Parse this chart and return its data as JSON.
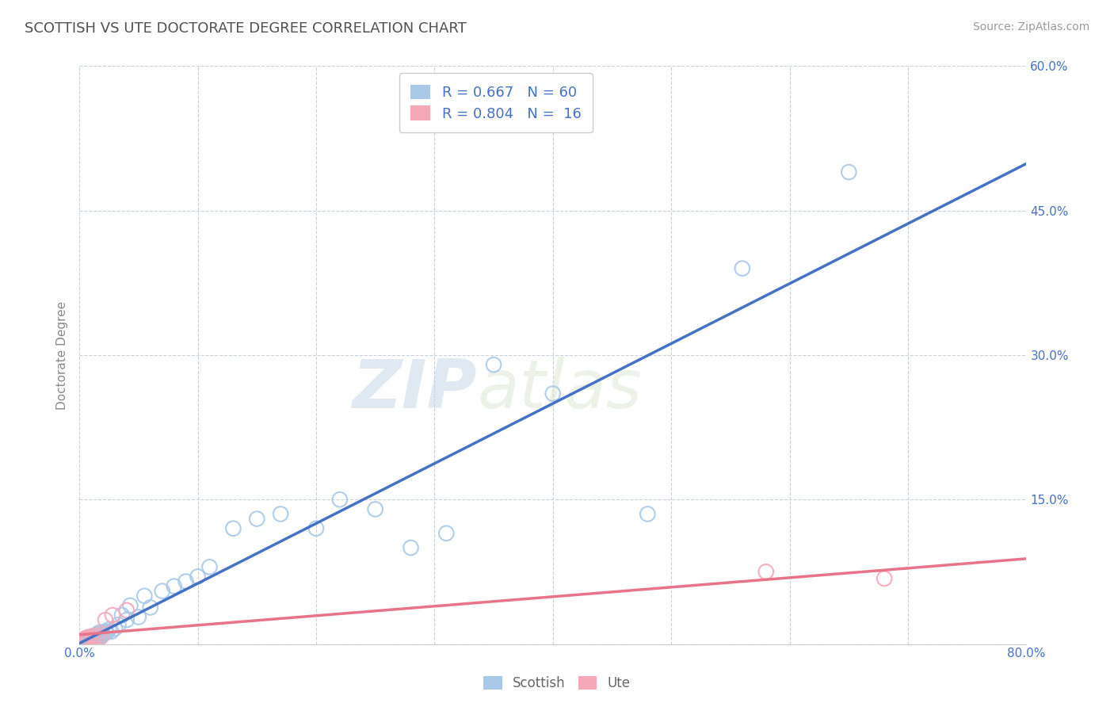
{
  "title": "SCOTTISH VS UTE DOCTORATE DEGREE CORRELATION CHART",
  "source": "Source: ZipAtlas.com",
  "ylabel_label": "Doctorate Degree",
  "x_min": 0.0,
  "x_max": 0.8,
  "y_min": 0.0,
  "y_max": 0.6,
  "yticks": [
    0.0,
    0.15,
    0.3,
    0.45,
    0.6
  ],
  "ytick_labels": [
    "",
    "15.0%",
    "30.0%",
    "45.0%",
    "60.0%"
  ],
  "xticks": [
    0.0,
    0.1,
    0.2,
    0.3,
    0.4,
    0.5,
    0.6,
    0.7,
    0.8
  ],
  "xtick_labels": [
    "0.0%",
    "",
    "",
    "",
    "",
    "",
    "",
    "",
    "80.0%"
  ],
  "scottish_R": 0.667,
  "scottish_N": 60,
  "ute_R": 0.804,
  "ute_N": 16,
  "scottish_color": "#a8c8e8",
  "ute_color": "#f4a8b8",
  "scottish_line_color": "#4472c4",
  "ute_line_color": "#e8748a",
  "background_color": "#ffffff",
  "grid_color": "#c8d0dc",
  "title_color": "#505050",
  "legend_text_color": "#4472c4",
  "watermark_zip": "ZIP",
  "watermark_atlas": "atlas",
  "scottish_x": [
    0.002,
    0.003,
    0.004,
    0.005,
    0.005,
    0.006,
    0.006,
    0.007,
    0.007,
    0.008,
    0.008,
    0.009,
    0.009,
    0.01,
    0.01,
    0.01,
    0.011,
    0.011,
    0.012,
    0.012,
    0.013,
    0.013,
    0.014,
    0.015,
    0.015,
    0.016,
    0.017,
    0.018,
    0.019,
    0.02,
    0.022,
    0.023,
    0.025,
    0.027,
    0.03,
    0.033,
    0.036,
    0.04,
    0.043,
    0.05,
    0.055,
    0.06,
    0.07,
    0.08,
    0.09,
    0.1,
    0.11,
    0.13,
    0.15,
    0.17,
    0.2,
    0.22,
    0.25,
    0.28,
    0.31,
    0.35,
    0.4,
    0.48,
    0.56,
    0.65
  ],
  "scottish_y": [
    0.002,
    0.003,
    0.002,
    0.003,
    0.004,
    0.003,
    0.005,
    0.002,
    0.004,
    0.003,
    0.005,
    0.004,
    0.006,
    0.003,
    0.005,
    0.007,
    0.004,
    0.006,
    0.005,
    0.008,
    0.006,
    0.009,
    0.007,
    0.005,
    0.01,
    0.008,
    0.012,
    0.009,
    0.011,
    0.01,
    0.013,
    0.012,
    0.015,
    0.013,
    0.016,
    0.02,
    0.03,
    0.025,
    0.04,
    0.028,
    0.05,
    0.038,
    0.055,
    0.06,
    0.065,
    0.07,
    0.08,
    0.12,
    0.13,
    0.135,
    0.12,
    0.15,
    0.14,
    0.1,
    0.115,
    0.29,
    0.26,
    0.135,
    0.39,
    0.49
  ],
  "ute_x": [
    0.002,
    0.003,
    0.004,
    0.005,
    0.006,
    0.007,
    0.008,
    0.01,
    0.012,
    0.015,
    0.018,
    0.022,
    0.028,
    0.04,
    0.58,
    0.68
  ],
  "ute_y": [
    0.003,
    0.004,
    0.005,
    0.006,
    0.004,
    0.007,
    0.005,
    0.008,
    0.006,
    0.009,
    0.007,
    0.025,
    0.03,
    0.035,
    0.075,
    0.068
  ]
}
